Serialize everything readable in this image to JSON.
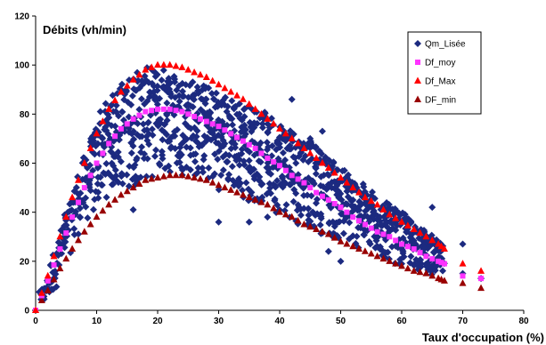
{
  "chart_data": {
    "type": "scatter",
    "title": "",
    "ylabel": "Débits (vh/min)",
    "xlabel": "Taux d'occupation (%)",
    "xlim": [
      0,
      80
    ],
    "ylim": [
      0,
      120
    ],
    "x_ticks": [
      "0",
      "10",
      "20",
      "30",
      "40",
      "50",
      "60",
      "70",
      "80"
    ],
    "y_ticks": [
      "0",
      "20",
      "40",
      "60",
      "80",
      "100",
      "120"
    ],
    "grid": false,
    "legend_position": "top-right",
    "legend": [
      "Qm_Lisée",
      "Df_moy",
      "Df_Max",
      "DF_min"
    ],
    "colors": {
      "Qm_Lisée": "#1c2a80",
      "Df_moy": "#ff33ff",
      "Df_Max": "#ff0000",
      "DF_min": "#990000"
    },
    "series": [
      {
        "name": "Df_Max",
        "marker": "triangle",
        "points": [
          [
            0,
            0
          ],
          [
            2,
            14
          ],
          [
            4,
            30
          ],
          [
            6,
            46
          ],
          [
            8,
            60
          ],
          [
            10,
            72
          ],
          [
            12,
            82
          ],
          [
            14,
            89
          ],
          [
            16,
            94
          ],
          [
            18,
            98
          ],
          [
            20,
            100
          ],
          [
            22,
            100
          ],
          [
            24,
            99
          ],
          [
            26,
            97
          ],
          [
            28,
            95
          ],
          [
            30,
            92
          ],
          [
            32,
            89
          ],
          [
            34,
            86
          ],
          [
            36,
            82
          ],
          [
            38,
            78
          ],
          [
            40,
            74
          ],
          [
            42,
            70
          ],
          [
            44,
            66
          ],
          [
            46,
            62
          ],
          [
            48,
            58
          ],
          [
            50,
            54
          ],
          [
            52,
            50
          ],
          [
            54,
            46
          ],
          [
            56,
            43
          ],
          [
            58,
            39
          ],
          [
            60,
            36
          ],
          [
            62,
            33
          ],
          [
            64,
            30
          ],
          [
            66,
            27
          ],
          [
            67,
            25
          ],
          [
            70,
            19
          ],
          [
            73,
            16
          ]
        ]
      },
      {
        "name": "Df_moy",
        "marker": "square",
        "points": [
          [
            0,
            0
          ],
          [
            2,
            12
          ],
          [
            4,
            25
          ],
          [
            6,
            38
          ],
          [
            8,
            50
          ],
          [
            10,
            60
          ],
          [
            12,
            68
          ],
          [
            14,
            74
          ],
          [
            16,
            78
          ],
          [
            18,
            81
          ],
          [
            20,
            82
          ],
          [
            22,
            82
          ],
          [
            24,
            81
          ],
          [
            26,
            79
          ],
          [
            28,
            77
          ],
          [
            30,
            75
          ],
          [
            32,
            72
          ],
          [
            34,
            69
          ],
          [
            36,
            66
          ],
          [
            38,
            62
          ],
          [
            40,
            59
          ],
          [
            42,
            55
          ],
          [
            44,
            52
          ],
          [
            46,
            48
          ],
          [
            48,
            45
          ],
          [
            50,
            42
          ],
          [
            52,
            38
          ],
          [
            54,
            35
          ],
          [
            56,
            32
          ],
          [
            58,
            30
          ],
          [
            60,
            27
          ],
          [
            62,
            25
          ],
          [
            64,
            22
          ],
          [
            66,
            20
          ],
          [
            67,
            19
          ],
          [
            70,
            14
          ],
          [
            73,
            13
          ]
        ]
      },
      {
        "name": "DF_min",
        "marker": "triangle",
        "points": [
          [
            0,
            0
          ],
          [
            2,
            8
          ],
          [
            4,
            17
          ],
          [
            6,
            25
          ],
          [
            8,
            32
          ],
          [
            10,
            38
          ],
          [
            12,
            43
          ],
          [
            14,
            47
          ],
          [
            16,
            50
          ],
          [
            18,
            53
          ],
          [
            20,
            54
          ],
          [
            22,
            55
          ],
          [
            24,
            55
          ],
          [
            26,
            54
          ],
          [
            28,
            53
          ],
          [
            30,
            51
          ],
          [
            32,
            49
          ],
          [
            34,
            47
          ],
          [
            36,
            45
          ],
          [
            38,
            43
          ],
          [
            40,
            40
          ],
          [
            42,
            38
          ],
          [
            44,
            35
          ],
          [
            46,
            33
          ],
          [
            48,
            31
          ],
          [
            50,
            28
          ],
          [
            52,
            26
          ],
          [
            54,
            24
          ],
          [
            56,
            22
          ],
          [
            58,
            20
          ],
          [
            60,
            18
          ],
          [
            62,
            16
          ],
          [
            64,
            15
          ],
          [
            66,
            13
          ],
          [
            67,
            12
          ],
          [
            70,
            11
          ],
          [
            73,
            9
          ]
        ]
      },
      {
        "name": "Qm_Lisée",
        "marker": "diamond",
        "envelope": {
          "x": [
            1,
            2,
            3,
            4,
            5,
            6,
            7,
            8,
            9,
            10,
            11,
            12,
            13,
            14,
            15,
            16,
            17,
            18,
            19,
            20,
            21,
            22,
            23,
            24,
            25,
            26,
            27,
            28,
            29,
            30,
            31,
            32,
            33,
            34,
            35,
            36,
            37,
            38,
            39,
            40,
            41,
            42,
            43,
            44,
            45,
            46,
            47,
            48,
            49,
            50,
            51,
            52,
            53,
            54,
            55,
            56,
            57,
            58,
            59,
            60,
            61,
            62,
            63,
            64,
            65,
            66,
            67
          ],
          "upper": [
            8,
            16,
            24,
            32,
            40,
            48,
            56,
            63,
            70,
            76,
            82,
            86,
            90,
            93,
            95,
            97,
            98,
            99,
            99,
            99,
            99,
            98,
            97,
            96,
            95,
            94,
            93,
            92,
            91,
            90,
            88,
            87,
            86,
            85,
            84,
            83,
            82,
            80,
            79,
            78,
            77,
            75,
            73,
            71,
            69,
            67,
            65,
            63,
            61,
            59,
            57,
            55,
            53,
            51,
            49,
            47,
            45,
            43,
            41,
            40,
            38,
            36,
            34,
            32,
            30,
            28,
            26
          ],
          "lower": [
            2,
            4,
            8,
            12,
            18,
            24,
            30,
            34,
            38,
            41,
            44,
            46,
            47,
            48,
            49,
            50,
            51,
            52,
            53,
            54,
            55,
            55,
            55,
            55,
            54,
            53,
            52,
            51,
            50,
            49,
            48,
            47,
            46,
            45,
            44,
            43,
            42,
            41,
            40,
            39,
            38,
            36,
            35,
            34,
            33,
            32,
            31,
            29,
            28,
            27,
            26,
            25,
            24,
            23,
            22,
            21,
            20,
            20,
            19,
            18,
            17,
            17,
            16,
            15,
            14,
            14,
            13
          ]
        },
        "outliers": [
          [
            16,
            41
          ],
          [
            35,
            36
          ],
          [
            38,
            38
          ],
          [
            42,
            86
          ],
          [
            48,
            24
          ],
          [
            50,
            20
          ],
          [
            65,
            42
          ],
          [
            70,
            27
          ],
          [
            73,
            13
          ],
          [
            70,
            15
          ],
          [
            60,
            19
          ],
          [
            45,
            70
          ],
          [
            47,
            73
          ],
          [
            30,
            36
          ]
        ]
      }
    ]
  }
}
